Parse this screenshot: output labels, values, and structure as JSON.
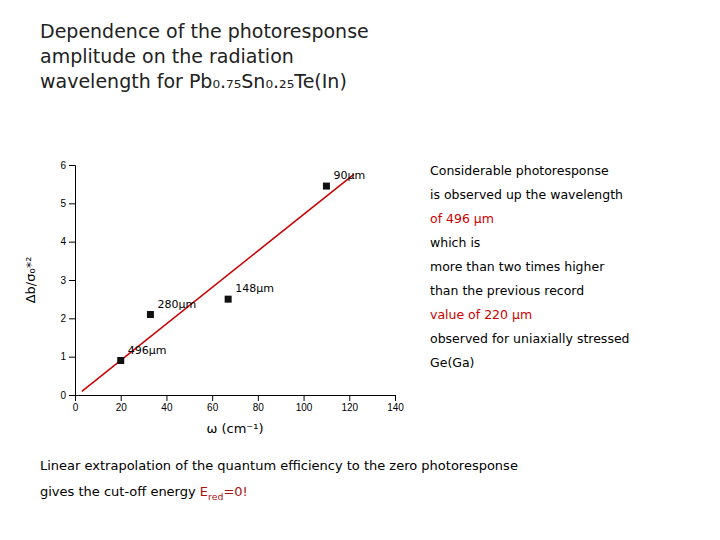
{
  "chart_data": {
    "type": "scatter",
    "title": "Dependence of the photoresponse\namplitude on the radiation\nwavelength for Pb₀.₇₅Sn₀.₂₅Te(In)",
    "x_label": "ω (cm⁻¹)",
    "y_label": "Δb/σ₀*²",
    "series": [
      {
        "type": "line",
        "color": "#cc0000",
        "x": [
          3,
          122
        ],
        "values": [
          0.0928,
          5.7572
        ]
      },
      {
        "type": "scatter",
        "color": "#111111",
        "marker": "square",
        "x": [
          20,
          33,
          67,
          110
        ],
        "values": [
          0.9,
          2.1,
          2.5,
          5.45
        ],
        "labels": [
          "496μm",
          "280μm",
          "148μm",
          "90μm"
        ]
      }
    ],
    "xlim": [
      0,
      140
    ],
    "ylim": [
      0,
      6
    ],
    "xticks": [
      0,
      20,
      40,
      60,
      80,
      100,
      120,
      140
    ],
    "yticks": [
      0,
      1,
      2,
      3,
      4,
      5,
      6
    ],
    "grid": false,
    "annotations": [
      {
        "lines": [
          [
            {
              "text": "Considerable photoresponse",
              "color": "#000000"
            }
          ],
          [
            {
              "text": "is observed up the wavelength",
              "color": "#000000"
            }
          ],
          [
            {
              "text": "of 496 μm",
              "color": "#cc0000"
            }
          ],
          [
            {
              "text": "which is",
              "color": "#000000"
            }
          ],
          [
            {
              "text": "more than two times higher",
              "color": "#000000"
            }
          ],
          [
            {
              "text": "than the previous record",
              "color": "#000000"
            }
          ],
          [
            {
              "text": "value of 220 μm",
              "color": "#cc0000"
            }
          ],
          [
            {
              "text": "observed for uniaxially stressed",
              "color": "#000000"
            }
          ],
          [
            {
              "text": "Ge(Ga)",
              "color": "#000000"
            }
          ]
        ]
      },
      {
        "lines": [
          [
            {
              "text": "Linear extrapolation of the quantum efficiency to the zero photoresponse",
              "color": "#000000"
            }
          ],
          [
            {
              "text": "gives the cut-off energy ",
              "color": "#000000"
            },
            {
              "text": "E",
              "color": "#aa1111"
            },
            {
              "text": "red",
              "color": "#aa1111",
              "sub": true
            },
            {
              "text": "=0!",
              "color": "#aa1111"
            }
          ]
        ]
      }
    ]
  }
}
